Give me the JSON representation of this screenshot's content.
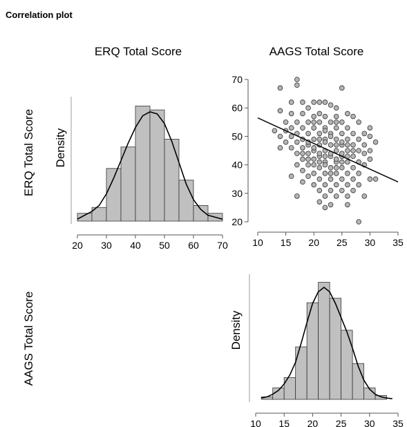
{
  "heading": "Correlation plot",
  "labels": {
    "col_1": "ERQ Total Score",
    "col_2": "AAGS Total Score",
    "row_1": "ERQ Total Score",
    "row_2": "AAGS Total Score",
    "density": "Density"
  },
  "colors": {
    "bar_fill": "#c0c0c0",
    "bar_stroke": "#333333",
    "point_fill": "#b5b5b5",
    "point_stroke": "#333333",
    "line": "#000000"
  },
  "chart_data": [
    {
      "type": "bar",
      "title": "ERQ Total Score",
      "ylabel": "Density",
      "xlim": [
        20,
        70
      ],
      "xticks": [
        20,
        30,
        40,
        50,
        60,
        70
      ],
      "bin_edges": [
        20,
        25,
        30,
        35,
        40,
        45,
        50,
        55,
        60,
        65,
        70
      ],
      "values": [
        0.004,
        0.007,
        0.027,
        0.038,
        0.059,
        0.057,
        0.042,
        0.021,
        0.008,
        0.004
      ],
      "density_curve": {
        "x": [
          20,
          22.5,
          25,
          27.5,
          30,
          32.5,
          35,
          37.5,
          40,
          42.5,
          45,
          47.5,
          50,
          52.5,
          55,
          57.5,
          60,
          62.5,
          65,
          67.5,
          70
        ],
        "y": [
          0.001,
          0.003,
          0.005,
          0.008,
          0.014,
          0.022,
          0.031,
          0.04,
          0.048,
          0.054,
          0.056,
          0.055,
          0.05,
          0.041,
          0.03,
          0.019,
          0.011,
          0.006,
          0.003,
          0.002,
          0.001
        ]
      },
      "ylim": [
        0,
        0.062
      ]
    },
    {
      "type": "scatter",
      "xlim": [
        10,
        35
      ],
      "ylim": [
        20,
        70
      ],
      "xticks": [
        10,
        15,
        20,
        25,
        30,
        35
      ],
      "yticks": [
        20,
        30,
        40,
        50,
        60,
        70
      ],
      "regression_line": {
        "x": [
          10,
          35
        ],
        "y": [
          56.5,
          34.0
        ]
      },
      "points": [
        [
          14,
          67
        ],
        [
          17,
          70
        ],
        [
          17,
          68
        ],
        [
          25,
          67
        ],
        [
          16,
          62
        ],
        [
          18,
          62
        ],
        [
          20,
          62
        ],
        [
          21,
          62
        ],
        [
          22,
          62
        ],
        [
          23,
          61
        ],
        [
          19,
          60
        ],
        [
          24,
          60
        ],
        [
          14,
          59
        ],
        [
          16,
          58
        ],
        [
          18,
          58
        ],
        [
          21,
          58
        ],
        [
          26,
          58
        ],
        [
          20,
          57
        ],
        [
          22,
          57
        ],
        [
          24,
          57
        ],
        [
          27,
          57
        ],
        [
          15,
          55
        ],
        [
          17,
          55
        ],
        [
          19,
          55
        ],
        [
          21,
          55
        ],
        [
          23,
          55
        ],
        [
          25,
          55
        ],
        [
          28,
          55
        ],
        [
          16,
          53
        ],
        [
          18,
          53
        ],
        [
          20,
          53
        ],
        [
          22,
          53
        ],
        [
          24,
          53
        ],
        [
          26,
          53
        ],
        [
          30,
          53
        ],
        [
          13,
          52
        ],
        [
          15,
          52
        ],
        [
          17,
          51
        ],
        [
          19,
          51
        ],
        [
          21,
          51
        ],
        [
          23,
          51
        ],
        [
          25,
          51
        ],
        [
          27,
          51
        ],
        [
          29,
          51
        ],
        [
          14,
          50
        ],
        [
          16,
          50
        ],
        [
          18,
          49
        ],
        [
          20,
          49
        ],
        [
          22,
          49
        ],
        [
          24,
          49
        ],
        [
          26,
          49
        ],
        [
          28,
          49
        ],
        [
          30,
          50
        ],
        [
          15,
          48
        ],
        [
          17,
          48
        ],
        [
          19,
          47
        ],
        [
          21,
          47
        ],
        [
          23,
          47
        ],
        [
          25,
          47
        ],
        [
          27,
          47
        ],
        [
          29,
          47
        ],
        [
          31,
          48
        ],
        [
          14,
          46
        ],
        [
          16,
          46
        ],
        [
          18,
          46
        ],
        [
          20,
          45
        ],
        [
          22,
          45
        ],
        [
          24,
          45
        ],
        [
          26,
          45
        ],
        [
          28,
          45
        ],
        [
          30,
          45
        ],
        [
          17,
          44
        ],
        [
          19,
          44
        ],
        [
          21,
          43
        ],
        [
          23,
          43
        ],
        [
          25,
          43
        ],
        [
          27,
          43
        ],
        [
          29,
          44
        ],
        [
          18,
          42
        ],
        [
          20,
          42
        ],
        [
          22,
          41
        ],
        [
          24,
          41
        ],
        [
          26,
          41
        ],
        [
          28,
          41
        ],
        [
          30,
          42
        ],
        [
          17,
          40
        ],
        [
          19,
          40
        ],
        [
          21,
          39
        ],
        [
          23,
          39
        ],
        [
          25,
          39
        ],
        [
          27,
          39
        ],
        [
          29,
          40
        ],
        [
          18,
          38
        ],
        [
          20,
          37
        ],
        [
          22,
          37
        ],
        [
          24,
          37
        ],
        [
          26,
          37
        ],
        [
          28,
          37
        ],
        [
          16,
          36
        ],
        [
          19,
          36
        ],
        [
          21,
          35
        ],
        [
          23,
          35
        ],
        [
          25,
          35
        ],
        [
          27,
          35
        ],
        [
          30,
          35
        ],
        [
          31,
          35
        ],
        [
          18,
          34
        ],
        [
          20,
          33
        ],
        [
          22,
          33
        ],
        [
          24,
          33
        ],
        [
          26,
          33
        ],
        [
          28,
          33
        ],
        [
          21,
          31
        ],
        [
          23,
          31
        ],
        [
          25,
          31
        ],
        [
          27,
          31
        ],
        [
          17,
          29
        ],
        [
          22,
          29
        ],
        [
          24,
          29
        ],
        [
          26,
          29
        ],
        [
          29,
          29
        ],
        [
          21,
          27
        ],
        [
          23,
          26
        ],
        [
          26,
          26
        ],
        [
          22,
          25
        ],
        [
          28,
          20
        ],
        [
          20,
          46
        ],
        [
          22,
          48
        ],
        [
          24,
          47
        ],
        [
          21,
          44
        ],
        [
          23,
          44
        ],
        [
          25,
          44
        ],
        [
          20,
          40
        ],
        [
          22,
          40
        ],
        [
          24,
          42
        ],
        [
          26,
          43
        ],
        [
          19,
          48
        ],
        [
          21,
          49
        ],
        [
          23,
          50
        ],
        [
          25,
          48
        ],
        [
          22,
          52
        ],
        [
          24,
          55
        ],
        [
          20,
          55
        ],
        [
          22,
          43
        ],
        [
          24,
          39
        ],
        [
          23,
          37
        ],
        [
          21,
          41
        ],
        [
          25,
          41
        ],
        [
          26,
          47
        ],
        [
          27,
          45
        ],
        [
          19,
          42
        ],
        [
          18,
          44
        ]
      ]
    },
    {
      "type": "bar",
      "ylabel": "Density",
      "xlim": [
        10,
        35
      ],
      "xticks": [
        10,
        15,
        20,
        25,
        30,
        35
      ],
      "bin_edges": [
        11,
        13,
        15,
        17,
        19,
        21,
        23,
        25,
        27,
        29,
        31,
        33
      ],
      "values": [
        0.004,
        0.018,
        0.034,
        0.082,
        0.151,
        0.183,
        0.158,
        0.108,
        0.056,
        0.018,
        0.006
      ],
      "density_curve": {
        "x": [
          11,
          12,
          13,
          14,
          15,
          16,
          17,
          18,
          19,
          20,
          21,
          22,
          23,
          24,
          25,
          26,
          27,
          28,
          29,
          30,
          31,
          32,
          33,
          34
        ],
        "y": [
          0.002,
          0.004,
          0.008,
          0.014,
          0.024,
          0.038,
          0.058,
          0.088,
          0.12,
          0.15,
          0.168,
          0.175,
          0.168,
          0.15,
          0.128,
          0.106,
          0.08,
          0.052,
          0.03,
          0.016,
          0.008,
          0.004,
          0.002,
          0.001
        ]
      },
      "ylim": [
        0,
        0.19
      ]
    }
  ]
}
